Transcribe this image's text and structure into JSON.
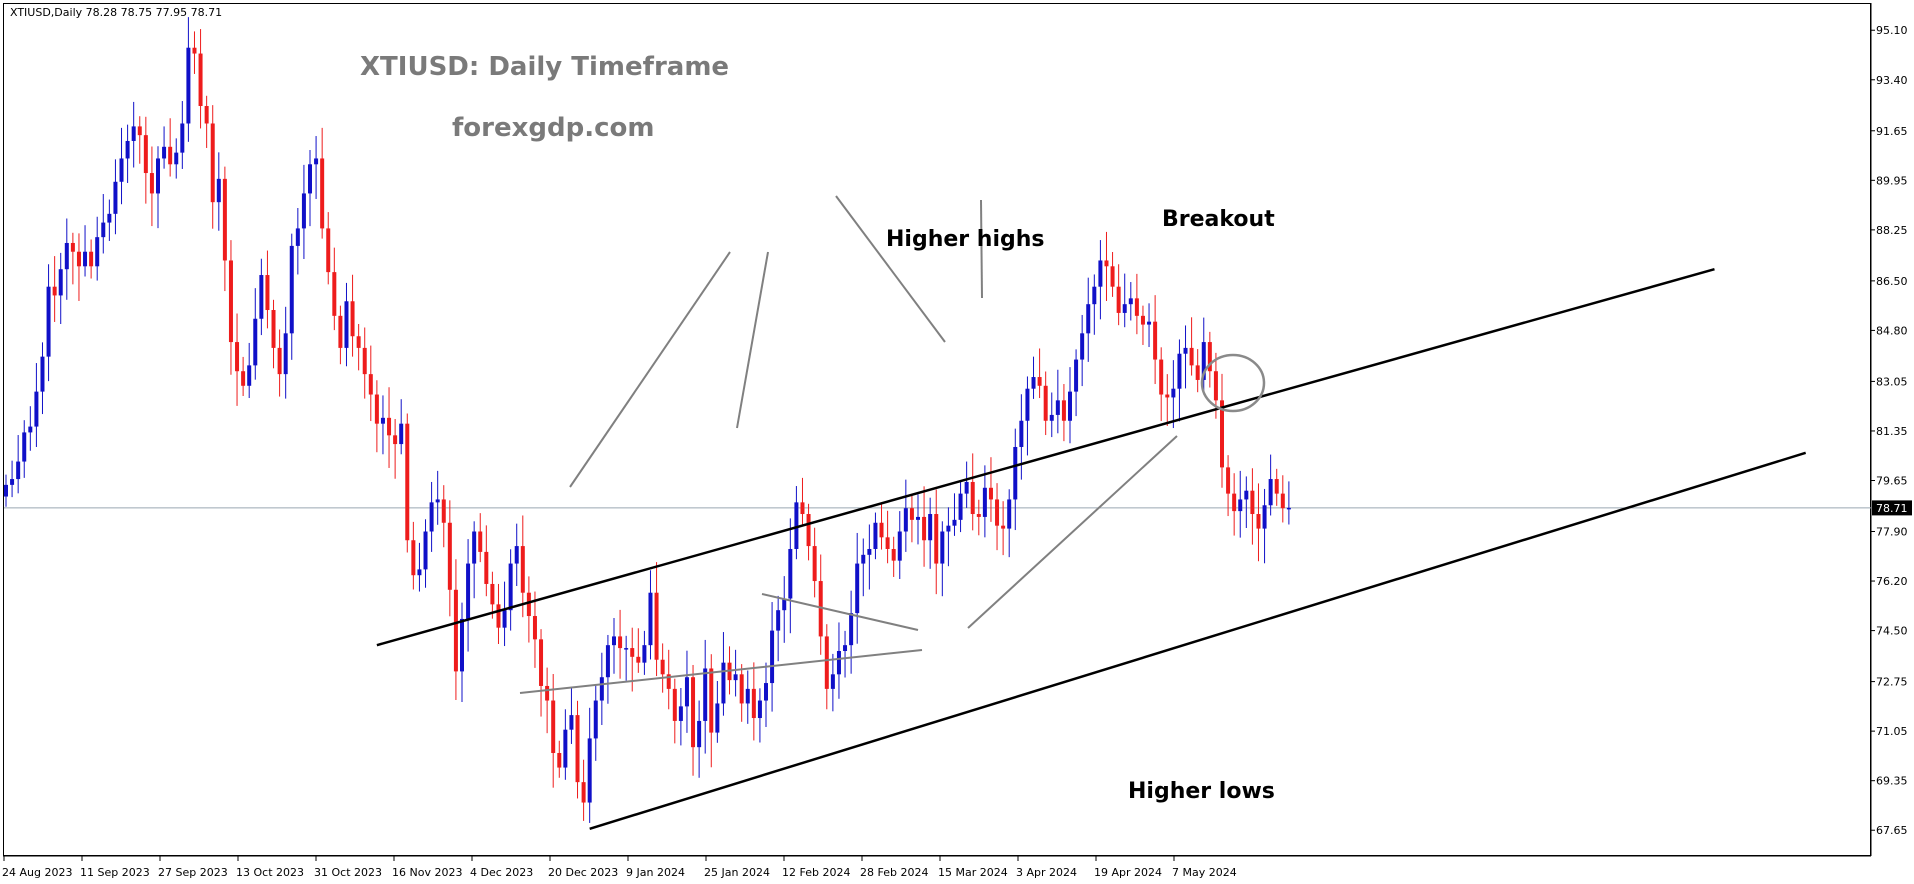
{
  "chart_data": {
    "type": "candlestick",
    "symbol_info": "XTIUSD,Daily  78.28 78.75 77.95 78.71",
    "title": "XTIUSD: Daily Timeframe",
    "subtitle": "forexgdp.com",
    "current_price_label": "78.71",
    "current_price": 78.71,
    "ylim": [
      66.8,
      96.0
    ],
    "y_ticks": [
      "95.10",
      "93.40",
      "91.65",
      "89.95",
      "88.25",
      "86.50",
      "84.80",
      "83.05",
      "81.35",
      "79.65",
      "77.90",
      "76.20",
      "74.50",
      "72.75",
      "71.05",
      "69.35",
      "67.65"
    ],
    "x_ticks": [
      "24 Aug 2023",
      "11 Sep 2023",
      "27 Sep 2023",
      "13 Oct 2023",
      "31 Oct 2023",
      "16 Nov 2023",
      "4 Dec 2023",
      "20 Dec 2023",
      "9 Jan 2024",
      "25 Jan 2024",
      "12 Feb 2024",
      "28 Feb 2024",
      "15 Mar 2024",
      "3 Apr 2024",
      "19 Apr 2024",
      "7 May 2024"
    ],
    "annotations": [
      "Higher highs",
      "Breakout",
      "Higher lows"
    ],
    "channel": {
      "upper": [
        [
          61,
          74.0
        ],
        [
          281,
          86.9
        ]
      ],
      "lower": [
        [
          96,
          67.7
        ],
        [
          296,
          80.6
        ]
      ]
    },
    "colors": {
      "bull": "#1010c8",
      "bear": "#ee1c1c",
      "frame": "#000000",
      "pointer": "#808080"
    },
    "closes": [
      79.5,
      79.7,
      80.3,
      81.3,
      81.5,
      82.7,
      83.9,
      86.3,
      86.0,
      86.9,
      87.8,
      87.5,
      87.0,
      87.5,
      87.0,
      88.0,
      88.5,
      88.8,
      89.9,
      90.7,
      91.3,
      91.8,
      91.5,
      90.2,
      89.5,
      90.7,
      91.1,
      90.5,
      90.9,
      91.9,
      94.5,
      94.3,
      92.5,
      91.9,
      89.2,
      90.0,
      87.2,
      84.4,
      83.4,
      82.9,
      83.6,
      85.2,
      86.7,
      85.5,
      84.2,
      83.3,
      84.7,
      87.7,
      88.3,
      89.5,
      90.5,
      90.7,
      88.3,
      86.8,
      85.3,
      84.2,
      85.8,
      84.6,
      84.2,
      83.3,
      82.6,
      81.6,
      81.8,
      81.2,
      80.9,
      81.6,
      77.6,
      76.4,
      76.6,
      77.9,
      78.9,
      79.0,
      78.2,
      75.9,
      73.1,
      74.9,
      76.8,
      77.9,
      77.2,
      76.1,
      75.4,
      74.6,
      75.2,
      76.8,
      77.4,
      75.8,
      75.0,
      74.2,
      72.6,
      72.1,
      70.3,
      69.8,
      71.1,
      71.6,
      69.3,
      68.6,
      70.8,
      72.1,
      72.9,
      74.0,
      74.3,
      73.9,
      73.9,
      73.6,
      73.4,
      74.0,
      75.8,
      73.5,
      73.0,
      72.5,
      71.4,
      71.9,
      72.9,
      70.5,
      71.4,
      73.2,
      71.0,
      72.0,
      73.4,
      72.8,
      73.0,
      72.0,
      72.5,
      71.5,
      72.1,
      72.7,
      74.5,
      75.2,
      75.6,
      77.3,
      78.9,
      78.5,
      77.4,
      76.2,
      74.3,
      72.5,
      73.0,
      73.8,
      74.0,
      75.1,
      76.8,
      77.1,
      77.3,
      78.2,
      77.7,
      77.3,
      76.9,
      77.9,
      78.7,
      78.3,
      78.4,
      77.6,
      78.5,
      76.8,
      77.9,
      78.1,
      78.3,
      79.2,
      79.6,
      78.5,
      78.4,
      79.4,
      79.0,
      78.1,
      78.0,
      79.0,
      80.8,
      81.7,
      82.8,
      83.2,
      82.9,
      81.7,
      81.9,
      82.4,
      81.7,
      82.7,
      83.8,
      84.7,
      85.7,
      86.3,
      87.2,
      87.0,
      86.3,
      85.4,
      85.7,
      85.9,
      85.3,
      85.0,
      85.1,
      83.8,
      82.6,
      82.5,
      82.8,
      84.0,
      84.2,
      83.6,
      83.1,
      84.4,
      83.4,
      82.4,
      80.1,
      79.2,
      78.6,
      79.0,
      79.3,
      78.5,
      78.0,
      78.8,
      79.7,
      79.2,
      78.7,
      78.71
    ]
  }
}
